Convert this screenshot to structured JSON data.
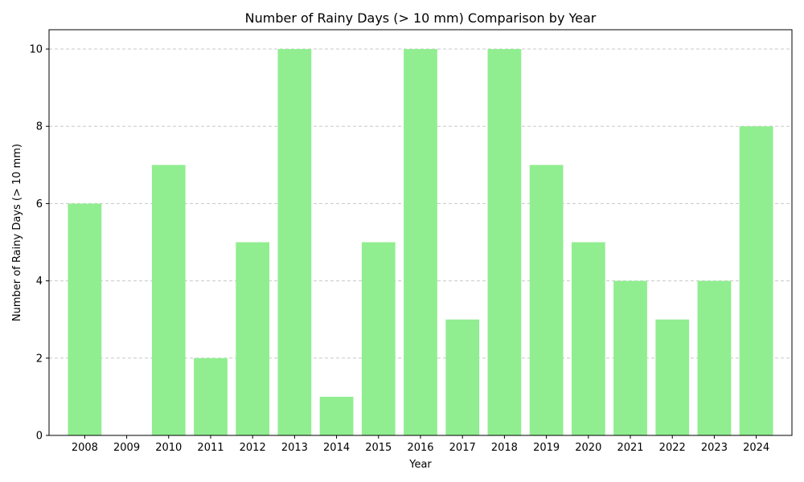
{
  "chart_data": {
    "type": "bar",
    "title": "Number of Rainy Days (> 10 mm) Comparison by Year",
    "xlabel": "Year",
    "ylabel": "Number of Rainy Days (> 10 mm)",
    "categories": [
      "2008",
      "2009",
      "2010",
      "2011",
      "2012",
      "2013",
      "2014",
      "2015",
      "2016",
      "2017",
      "2018",
      "2019",
      "2020",
      "2021",
      "2022",
      "2023",
      "2024"
    ],
    "values": [
      6,
      0,
      7,
      2,
      5,
      10,
      1,
      5,
      10,
      3,
      10,
      7,
      5,
      4,
      3,
      4,
      8
    ],
    "ylim": [
      0,
      10.5
    ],
    "yticks": [
      "0",
      "2",
      "4",
      "6",
      "8",
      "10"
    ],
    "grid": true,
    "grid_axis": "y",
    "grid_style": "dashed",
    "legend": "none",
    "colors": {
      "bar": "#90ee90",
      "grid": "#c8c8c8",
      "axis": "#000000"
    }
  }
}
